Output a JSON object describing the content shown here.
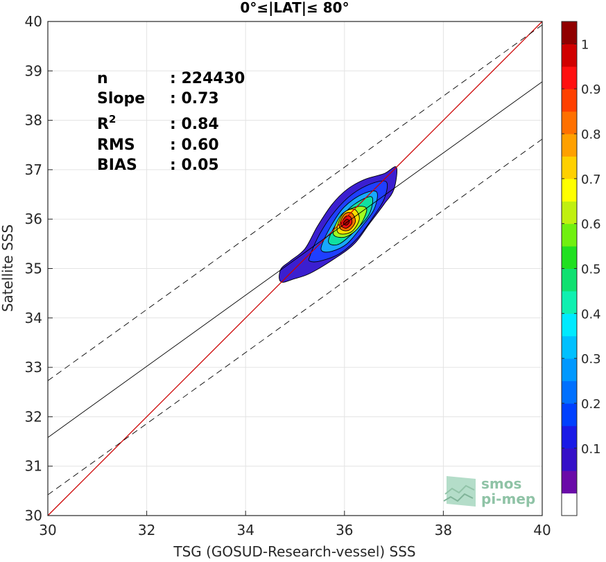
{
  "chart_data": {
    "type": "heatmap",
    "title": "0°≤|LAT|≤ 80°",
    "xlabel": "TSG (GOSUD-Research-vessel) SSS",
    "ylabel": "Satellite SSS",
    "xlim": [
      30,
      40
    ],
    "ylim": [
      30,
      40
    ],
    "x_ticks": [
      "30",
      "32",
      "34",
      "36",
      "38",
      "40"
    ],
    "y_ticks": [
      "30",
      "31",
      "32",
      "33",
      "34",
      "35",
      "36",
      "37",
      "38",
      "39",
      "40"
    ],
    "grid": true,
    "stats": [
      {
        "label": "n",
        "value": ": 224430"
      },
      {
        "label": "Slope",
        "value": ": 0.73"
      },
      {
        "label": "R",
        "sup": "2",
        "value": ": 0.84"
      },
      {
        "label": "RMS",
        "value": ": 0.60"
      },
      {
        "label": "BIAS",
        "value": ": 0.05"
      }
    ],
    "lines": {
      "identity": {
        "x": [
          30,
          40
        ],
        "y": [
          30,
          40
        ],
        "color": "#cc0000"
      },
      "regression": {
        "x": [
          30,
          40
        ],
        "y": [
          31.58,
          38.78
        ],
        "color": "#000000"
      },
      "upper_bound": {
        "x": [
          30,
          40
        ],
        "y": [
          32.73,
          39.93
        ],
        "color": "#000000",
        "dash": true
      },
      "lower_bound": {
        "x": [
          30,
          40
        ],
        "y": [
          30.42,
          37.62
        ],
        "color": "#000000",
        "dash": true
      }
    },
    "density_contours": [
      {
        "level": 0.05,
        "color": "#3b1fd0",
        "points": [
          [
            34.68,
            34.8
          ],
          [
            34.72,
            35.0
          ],
          [
            34.9,
            35.15
          ],
          [
            35.2,
            35.4
          ],
          [
            35.45,
            35.85
          ],
          [
            35.75,
            36.3
          ],
          [
            36.05,
            36.6
          ],
          [
            36.4,
            36.8
          ],
          [
            36.8,
            36.92
          ],
          [
            37.05,
            37.05
          ],
          [
            37.0,
            36.6
          ],
          [
            36.8,
            36.3
          ],
          [
            36.5,
            35.9
          ],
          [
            36.2,
            35.5
          ],
          [
            35.8,
            35.2
          ],
          [
            35.3,
            34.9
          ],
          [
            34.95,
            34.78
          ],
          [
            34.75,
            34.72
          ]
        ]
      },
      {
        "level": 0.15,
        "color": "#1f3fff",
        "points": [
          [
            35.3,
            35.25
          ],
          [
            35.5,
            35.7
          ],
          [
            35.8,
            36.15
          ],
          [
            36.15,
            36.5
          ],
          [
            36.55,
            36.72
          ],
          [
            36.85,
            36.75
          ],
          [
            36.8,
            36.4
          ],
          [
            36.55,
            36.0
          ],
          [
            36.25,
            35.6
          ],
          [
            35.9,
            35.3
          ],
          [
            35.5,
            35.15
          ],
          [
            35.3,
            35.15
          ]
        ]
      },
      {
        "level": 0.3,
        "color": "#18a8ff",
        "points": [
          [
            35.55,
            35.5
          ],
          [
            35.75,
            35.9
          ],
          [
            36.0,
            36.25
          ],
          [
            36.35,
            36.5
          ],
          [
            36.65,
            36.55
          ],
          [
            36.6,
            36.2
          ],
          [
            36.35,
            35.85
          ],
          [
            36.05,
            35.5
          ],
          [
            35.75,
            35.35
          ],
          [
            35.55,
            35.35
          ]
        ]
      },
      {
        "level": 0.45,
        "color": "#10e0a0",
        "points": [
          [
            35.7,
            35.65
          ],
          [
            35.9,
            36.0
          ],
          [
            36.2,
            36.3
          ],
          [
            36.55,
            36.45
          ],
          [
            36.5,
            36.1
          ],
          [
            36.2,
            35.75
          ],
          [
            35.9,
            35.5
          ],
          [
            35.7,
            35.5
          ]
        ]
      },
      {
        "level": 0.6,
        "color": "#a0ff20",
        "points": [
          [
            35.78,
            35.78
          ],
          [
            35.95,
            36.1
          ],
          [
            36.25,
            36.25
          ],
          [
            36.45,
            36.2
          ],
          [
            36.3,
            35.85
          ],
          [
            36.05,
            35.65
          ],
          [
            35.82,
            35.65
          ]
        ]
      },
      {
        "level": 0.7,
        "color": "#ffe000",
        "points": [
          [
            35.85,
            35.82
          ],
          [
            35.98,
            36.12
          ],
          [
            36.2,
            36.2
          ],
          [
            36.3,
            36.0
          ],
          [
            36.15,
            35.75
          ],
          [
            35.92,
            35.7
          ]
        ]
      },
      {
        "level": 0.8,
        "color": "#ff7000",
        "points": [
          [
            35.9,
            35.88
          ],
          [
            36.0,
            36.1
          ],
          [
            36.15,
            36.12
          ],
          [
            36.22,
            35.95
          ],
          [
            36.1,
            35.78
          ],
          [
            35.95,
            35.78
          ]
        ]
      },
      {
        "level": 0.9,
        "color": "#ee1010",
        "points": [
          [
            35.93,
            35.9
          ],
          [
            36.02,
            36.05
          ],
          [
            36.12,
            36.05
          ],
          [
            36.15,
            35.92
          ],
          [
            36.05,
            35.82
          ],
          [
            35.96,
            35.84
          ]
        ]
      },
      {
        "level": 0.97,
        "color": "#b00000",
        "points": [
          [
            35.98,
            35.93
          ],
          [
            36.05,
            36.0
          ],
          [
            36.1,
            35.95
          ],
          [
            36.05,
            35.88
          ],
          [
            36.0,
            35.89
          ]
        ]
      }
    ],
    "colorbar": {
      "ticks": [
        "0.1",
        "0.2",
        "0.3",
        "0.4",
        "0.5",
        "0.6",
        "0.7",
        "0.8",
        "0.9",
        "1"
      ],
      "colors": [
        "#ffffff",
        "#6a0aa8",
        "#3510c8",
        "#1a1ae6",
        "#0040ff",
        "#0070ff",
        "#0098ff",
        "#00c0ff",
        "#00eaff",
        "#10f0b0",
        "#10e070",
        "#20e020",
        "#70f010",
        "#c0f010",
        "#ffff00",
        "#ffd000",
        "#ffa000",
        "#ff7000",
        "#ff4000",
        "#ff1010",
        "#d00000",
        "#900000"
      ]
    },
    "logo": {
      "line1": "smos",
      "line2": "pi-mep"
    }
  }
}
